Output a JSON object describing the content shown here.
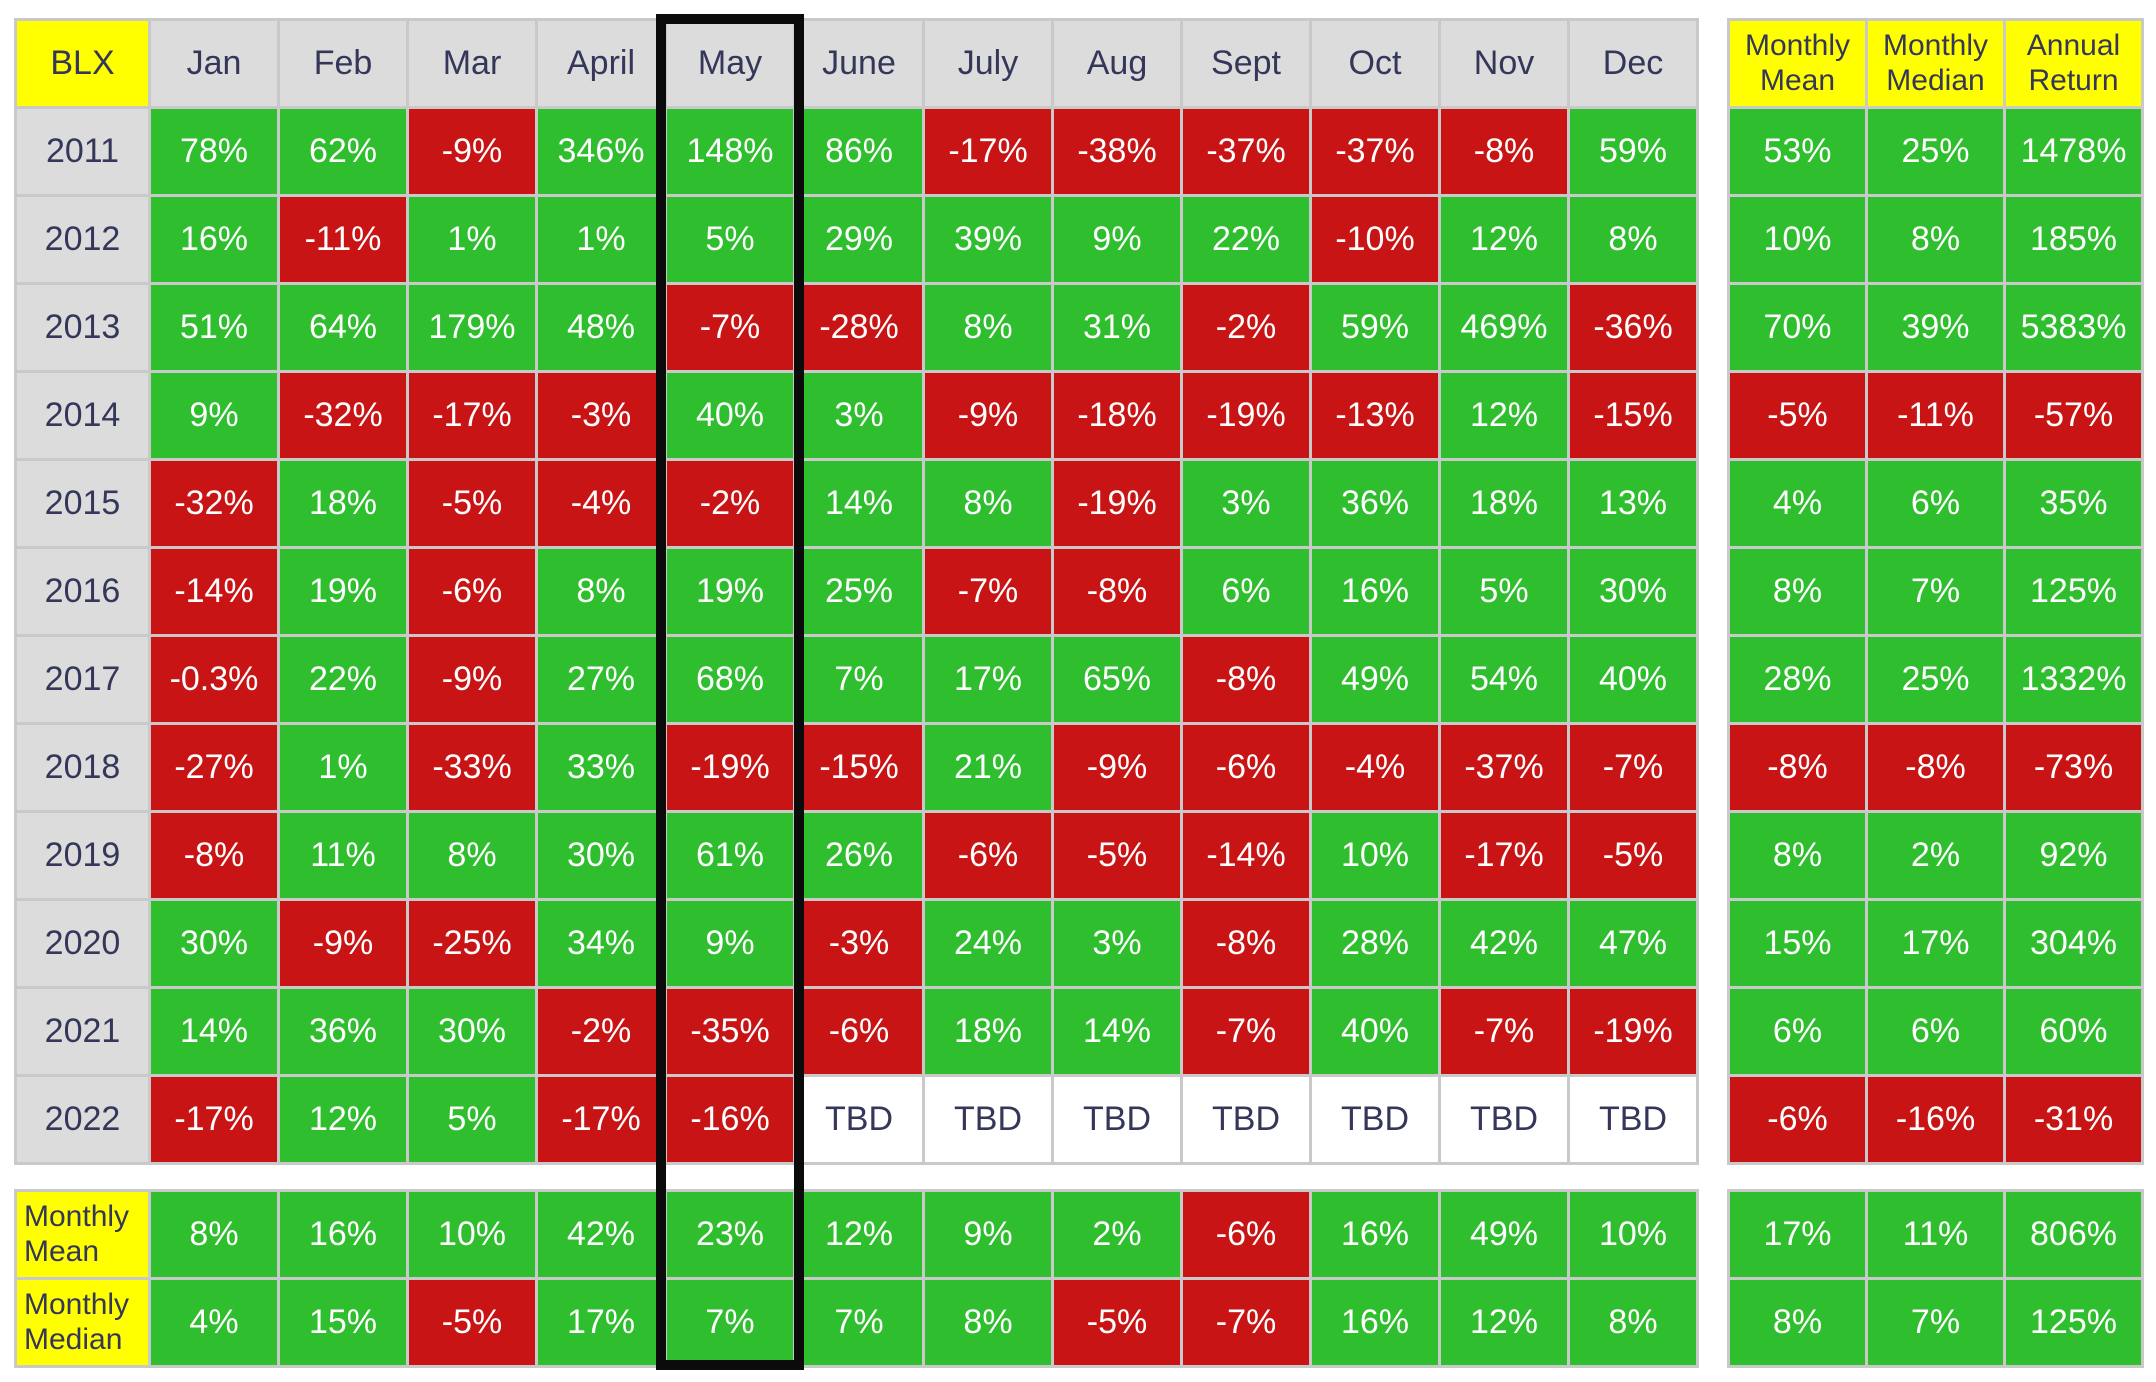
{
  "chart_data": {
    "type": "heatmap",
    "title": "BLX",
    "corner_label": "BLX",
    "columns": [
      "Jan",
      "Feb",
      "Mar",
      "April",
      "May",
      "June",
      "July",
      "Aug",
      "Sept",
      "Oct",
      "Nov",
      "Dec"
    ],
    "summary_columns": [
      "Monthly Mean",
      "Monthly Median",
      "Annual Return"
    ],
    "highlighted_column": "May",
    "rows": [
      {
        "year": "2011",
        "values": [
          "78%",
          "62%",
          "-9%",
          "346%",
          "148%",
          "86%",
          "-17%",
          "-38%",
          "-37%",
          "-37%",
          "-8%",
          "59%"
        ],
        "summary": [
          "53%",
          "25%",
          "1478%"
        ]
      },
      {
        "year": "2012",
        "values": [
          "16%",
          "-11%",
          "1%",
          "1%",
          "5%",
          "29%",
          "39%",
          "9%",
          "22%",
          "-10%",
          "12%",
          "8%"
        ],
        "summary": [
          "10%",
          "8%",
          "185%"
        ]
      },
      {
        "year": "2013",
        "values": [
          "51%",
          "64%",
          "179%",
          "48%",
          "-7%",
          "-28%",
          "8%",
          "31%",
          "-2%",
          "59%",
          "469%",
          "-36%"
        ],
        "summary": [
          "70%",
          "39%",
          "5383%"
        ]
      },
      {
        "year": "2014",
        "values": [
          "9%",
          "-32%",
          "-17%",
          "-3%",
          "40%",
          "3%",
          "-9%",
          "-18%",
          "-19%",
          "-13%",
          "12%",
          "-15%"
        ],
        "summary": [
          "-5%",
          "-11%",
          "-57%"
        ]
      },
      {
        "year": "2015",
        "values": [
          "-32%",
          "18%",
          "-5%",
          "-4%",
          "-2%",
          "14%",
          "8%",
          "-19%",
          "3%",
          "36%",
          "18%",
          "13%"
        ],
        "summary": [
          "4%",
          "6%",
          "35%"
        ]
      },
      {
        "year": "2016",
        "values": [
          "-14%",
          "19%",
          "-6%",
          "8%",
          "19%",
          "25%",
          "-7%",
          "-8%",
          "6%",
          "16%",
          "5%",
          "30%"
        ],
        "summary": [
          "8%",
          "7%",
          "125%"
        ]
      },
      {
        "year": "2017",
        "values": [
          "-0.3%",
          "22%",
          "-9%",
          "27%",
          "68%",
          "7%",
          "17%",
          "65%",
          "-8%",
          "49%",
          "54%",
          "40%"
        ],
        "summary": [
          "28%",
          "25%",
          "1332%"
        ]
      },
      {
        "year": "2018",
        "values": [
          "-27%",
          "1%",
          "-33%",
          "33%",
          "-19%",
          "-15%",
          "21%",
          "-9%",
          "-6%",
          "-4%",
          "-37%",
          "-7%"
        ],
        "summary": [
          "-8%",
          "-8%",
          "-73%"
        ]
      },
      {
        "year": "2019",
        "values": [
          "-8%",
          "11%",
          "8%",
          "30%",
          "61%",
          "26%",
          "-6%",
          "-5%",
          "-14%",
          "10%",
          "-17%",
          "-5%"
        ],
        "summary": [
          "8%",
          "2%",
          "92%"
        ]
      },
      {
        "year": "2020",
        "values": [
          "30%",
          "-9%",
          "-25%",
          "34%",
          "9%",
          "-3%",
          "24%",
          "3%",
          "-8%",
          "28%",
          "42%",
          "47%"
        ],
        "summary": [
          "15%",
          "17%",
          "304%"
        ]
      },
      {
        "year": "2021",
        "values": [
          "14%",
          "36%",
          "30%",
          "-2%",
          "-35%",
          "-6%",
          "18%",
          "14%",
          "-7%",
          "40%",
          "-7%",
          "-19%"
        ],
        "summary": [
          "6%",
          "6%",
          "60%"
        ]
      },
      {
        "year": "2022",
        "values": [
          "-17%",
          "12%",
          "5%",
          "-17%",
          "-16%",
          "TBD",
          "TBD",
          "TBD",
          "TBD",
          "TBD",
          "TBD",
          "TBD"
        ],
        "summary": [
          "-6%",
          "-16%",
          "-31%"
        ]
      }
    ],
    "footer_rows": [
      {
        "label": "Monthly Mean",
        "values": [
          "8%",
          "16%",
          "10%",
          "42%",
          "23%",
          "12%",
          "9%",
          "2%",
          "-6%",
          "16%",
          "49%",
          "10%"
        ],
        "summary": [
          "17%",
          "11%",
          "806%"
        ]
      },
      {
        "label": "Monthly Median",
        "values": [
          "4%",
          "15%",
          "-5%",
          "17%",
          "7%",
          "7%",
          "8%",
          "-5%",
          "-7%",
          "16%",
          "12%",
          "8%"
        ],
        "summary": [
          "8%",
          "7%",
          "125%"
        ]
      }
    ]
  },
  "colors": {
    "positive": "#2ebe2e",
    "negative": "#c81414",
    "pending_bg": "#ffffff",
    "header_bg": "#dcdcdc",
    "label_bg": "#ffff00",
    "dark_text": "#343759",
    "light_text": "#ffffff",
    "gridline": "#c9c9c9",
    "highlight_border": "#0b0b0b"
  }
}
